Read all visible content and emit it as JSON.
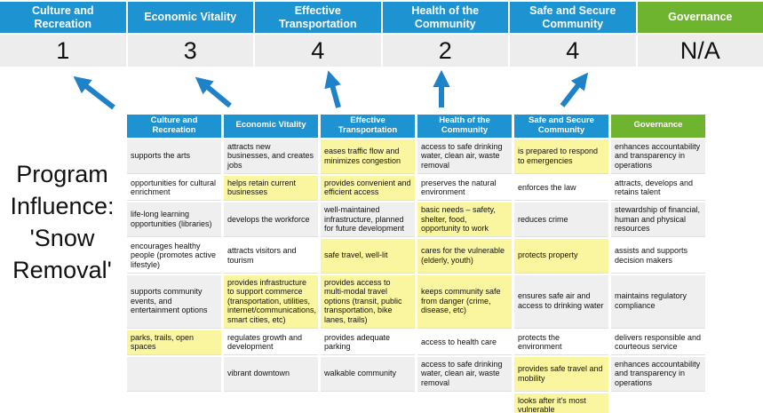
{
  "slide": {
    "program_label": "Program\nInfluence:\n'Snow\nRemoval'"
  },
  "colors": {
    "header_blue": "#1E93D2",
    "header_green": "#6FB42E",
    "arrow_blue": "#1E82C9",
    "highlight_yellow": "#FAF6A0",
    "row_stripe_gray": "#EFEFEF",
    "score_band_gray": "#EDEDED"
  },
  "scoreboard": {
    "items": [
      {
        "label": "Culture and Recreation",
        "score": "1"
      },
      {
        "label": "Economic Vitality",
        "score": "3"
      },
      {
        "label": "Effective Transportation",
        "score": "4"
      },
      {
        "label": "Health of the Community",
        "score": "2"
      },
      {
        "label": "Safe and Secure Community",
        "score": "4"
      },
      {
        "label": "Governance",
        "score": "N/A"
      }
    ]
  },
  "table": {
    "headers": [
      "Culture and Recreation",
      "Economic Vitality",
      "Effective Transportation",
      "Health of the Community",
      "Safe and Secure Community",
      "Governance"
    ],
    "rows": [
      {
        "cells": [
          {
            "text": "supports the arts",
            "hl": false
          },
          {
            "text": "attracts new businesses, and creates jobs",
            "hl": false
          },
          {
            "text": "eases traffic flow and minimizes congestion",
            "hl": true
          },
          {
            "text": "access to safe drinking water, clean air, waste removal",
            "hl": false
          },
          {
            "text": "is prepared to respond to emergencies",
            "hl": true
          },
          {
            "text": "enhances accountability and transparency in operations",
            "hl": false
          }
        ]
      },
      {
        "cells": [
          {
            "text": "opportunities for cultural enrichment",
            "hl": false
          },
          {
            "text": "helps retain current businesses",
            "hl": true
          },
          {
            "text": "provides convenient and efficient access",
            "hl": true
          },
          {
            "text": "preserves the natural environment",
            "hl": false
          },
          {
            "text": "enforces the law",
            "hl": false
          },
          {
            "text": "attracts, develops and retains talent",
            "hl": false
          }
        ]
      },
      {
        "cells": [
          {
            "text": "life-long learning opportunities (libraries)",
            "hl": false
          },
          {
            "text": "develops the workforce",
            "hl": false
          },
          {
            "text": "well-maintained infrastructure, planned for future development",
            "hl": false
          },
          {
            "text": "basic needs – safety, shelter, food, opportunity to work",
            "hl": true
          },
          {
            "text": "reduces crime",
            "hl": false
          },
          {
            "text": "stewardship of financial, human and physical resources",
            "hl": false
          }
        ]
      },
      {
        "cells": [
          {
            "text": "encourages healthy people (promotes active lifestyle)",
            "hl": false
          },
          {
            "text": "attracts visitors and tourism",
            "hl": false
          },
          {
            "text": "safe travel, well-lit",
            "hl": true
          },
          {
            "text": "cares for the vulnerable (elderly, youth)",
            "hl": true
          },
          {
            "text": "protects property",
            "hl": true
          },
          {
            "text": "assists and supports decision makers",
            "hl": false
          }
        ]
      },
      {
        "cells": [
          {
            "text": "supports community events, and entertainment options",
            "hl": false
          },
          {
            "text": "provides infrastructure to support commerce (transportation, utilities, internet/communications, smart cities, etc)",
            "hl": true
          },
          {
            "text": "provides access to multi-modal travel options (transit, public transportation, bike lanes, trails)",
            "hl": true
          },
          {
            "text": "keeps community safe from danger (crime, disease, etc)",
            "hl": true
          },
          {
            "text": "ensures safe air and access to drinking water",
            "hl": false
          },
          {
            "text": "maintains regulatory compliance",
            "hl": false
          }
        ]
      },
      {
        "cells": [
          {
            "text": "parks, trails, open spaces",
            "hl": true
          },
          {
            "text": "regulates growth and development",
            "hl": false
          },
          {
            "text": "provides adequate parking",
            "hl": false
          },
          {
            "text": "access to health care",
            "hl": false
          },
          {
            "text": "protects the environment",
            "hl": false
          },
          {
            "text": "delivers responsible and courteous service",
            "hl": false
          }
        ]
      },
      {
        "cells": [
          {
            "text": "",
            "hl": false
          },
          {
            "text": "vibrant downtown",
            "hl": false
          },
          {
            "text": "walkable community",
            "hl": false
          },
          {
            "text": "access to safe drinking water, clean air, waste removal",
            "hl": false
          },
          {
            "text": "provides safe travel and mobility",
            "hl": true
          },
          {
            "text": "enhances accountability and transparency in operations",
            "hl": false
          }
        ]
      },
      {
        "cells": [
          {
            "text": "",
            "hl": false
          },
          {
            "text": "",
            "hl": false
          },
          {
            "text": "",
            "hl": false
          },
          {
            "text": "",
            "hl": false
          },
          {
            "text": "looks after it's most vulnerable",
            "hl": true
          },
          {
            "text": "",
            "hl": false
          }
        ]
      }
    ]
  }
}
